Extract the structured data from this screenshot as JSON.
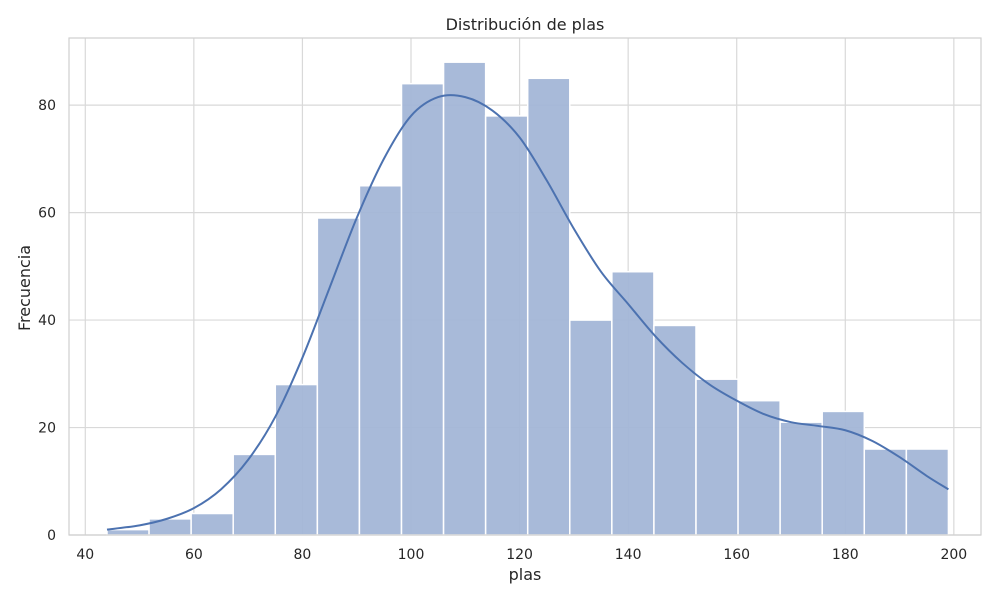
{
  "colors": {
    "bar_fill": "#a3b6d7",
    "bar_stroke": "#ffffff",
    "kde": "#4c72b0",
    "grid": "#d9d9d9",
    "frame": "#cfcfcf",
    "background": "#ffffff"
  },
  "chart_data": {
    "type": "bar",
    "title": "Distribución de plas",
    "xlabel": "plas",
    "ylabel": "Frecuencia",
    "xlim": [
      37,
      205
    ],
    "ylim": [
      0,
      92.5
    ],
    "grid": true,
    "legend": "none",
    "xticks": [
      40,
      60,
      80,
      100,
      120,
      140,
      160,
      180,
      200
    ],
    "yticks": [
      0,
      20,
      40,
      60,
      80
    ],
    "bins": {
      "start": 44,
      "width": 7.75,
      "counts": [
        1,
        3,
        4,
        15,
        28,
        59,
        65,
        84,
        88,
        78,
        85,
        40,
        49,
        39,
        29,
        25,
        21,
        23,
        16,
        16
      ]
    },
    "kde": {
      "x": [
        44,
        50,
        55,
        60,
        65,
        70,
        75,
        80,
        85,
        90,
        95,
        100,
        105,
        110,
        115,
        120,
        125,
        130,
        135,
        140,
        145,
        150,
        155,
        160,
        165,
        170,
        175,
        180,
        185,
        190,
        195,
        199
      ],
      "y": [
        1,
        1.8,
        3,
        5,
        8.5,
        14,
        22,
        33,
        46,
        59,
        70,
        78,
        81.5,
        81.5,
        79,
        74,
        66,
        57,
        49,
        43,
        37,
        32,
        28,
        25,
        22.5,
        21,
        20.3,
        19.5,
        17.5,
        14.5,
        11,
        8.5
      ]
    }
  }
}
